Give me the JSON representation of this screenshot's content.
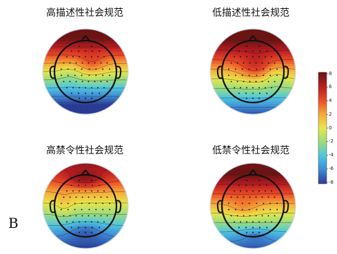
{
  "panel_label": "B",
  "maps": [
    {
      "id": "high-desc",
      "title": "高描述性社会规范",
      "pattern": "high_desc"
    },
    {
      "id": "low-desc",
      "title": "低描述性社会规范",
      "pattern": "low_desc"
    },
    {
      "id": "high-inj",
      "title": "高禁令性社会规范",
      "pattern": "high_inj"
    },
    {
      "id": "low-inj",
      "title": "低禁令性社会规范",
      "pattern": "low_inj"
    }
  ],
  "colorbar": {
    "ticks": [
      "8",
      "6",
      "4",
      "2",
      "0",
      "-2",
      "-4",
      "-6",
      "-8"
    ],
    "min": -8,
    "max": 8,
    "colors": [
      "#2a3b94",
      "#3e8ad4",
      "#4fc6e0",
      "#9bdc7e",
      "#e8e64a",
      "#f7a83a",
      "#ea4a26",
      "#b81c22",
      "#6b1414"
    ]
  }
}
